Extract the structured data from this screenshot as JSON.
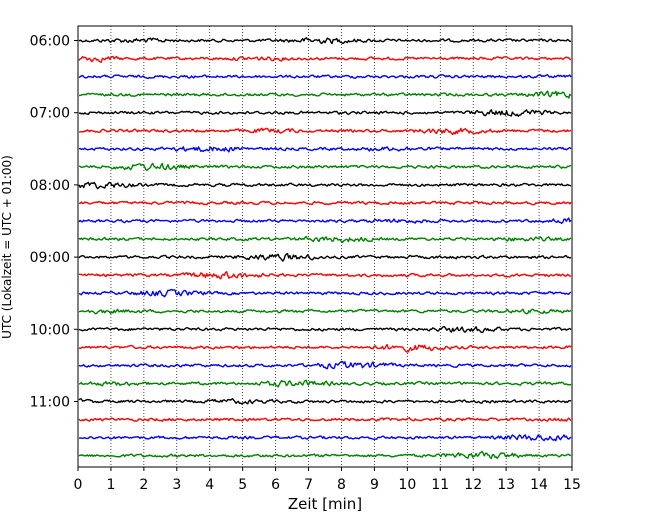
{
  "chart_data": {
    "type": "line",
    "title": "",
    "xlabel": "Zeit  [min]",
    "ylabel": "UTC (Lokalzeit = UTC + 01:00)",
    "xlim": [
      0,
      15
    ],
    "x_ticks": [
      "0",
      "1",
      "2",
      "3",
      "4",
      "5",
      "6",
      "7",
      "8",
      "9",
      "10",
      "11",
      "12",
      "13",
      "14",
      "15"
    ],
    "y_ticks": [
      "06:00",
      "07:00",
      "08:00",
      "09:00",
      "10:00",
      "11:00"
    ],
    "grid": "vertical-dotted",
    "legend": "none",
    "trace_interval_minutes": 15,
    "traces_count": 24,
    "start_time": "06:00",
    "trace_colors": [
      "#000000",
      "#ff0000",
      "#0000ff",
      "#008000"
    ]
  }
}
